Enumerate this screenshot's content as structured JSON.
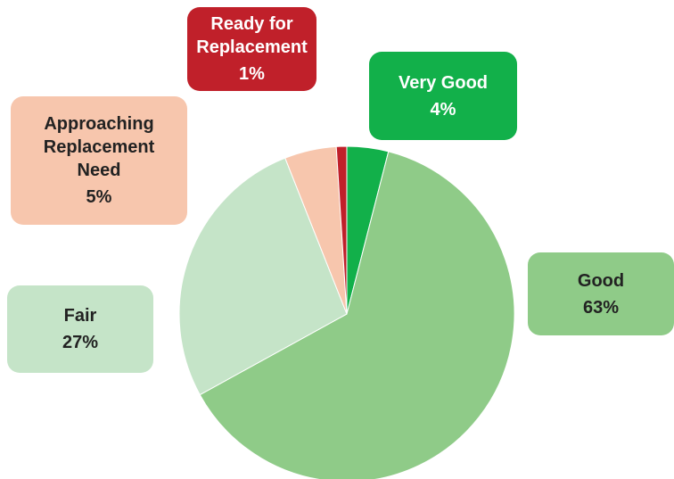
{
  "chart_data": {
    "type": "pie",
    "categories": [
      "Very Good",
      "Good",
      "Fair",
      "Approaching Replacement Need",
      "Ready for Replacement"
    ],
    "values": [
      4,
      63,
      27,
      5,
      1
    ],
    "value_labels": [
      "4%",
      "63%",
      "27%",
      "5%",
      "1%"
    ],
    "colors": [
      "#12b04a",
      "#8fcb88",
      "#c5e4c8",
      "#f7c6ad",
      "#c0202a"
    ]
  }
}
